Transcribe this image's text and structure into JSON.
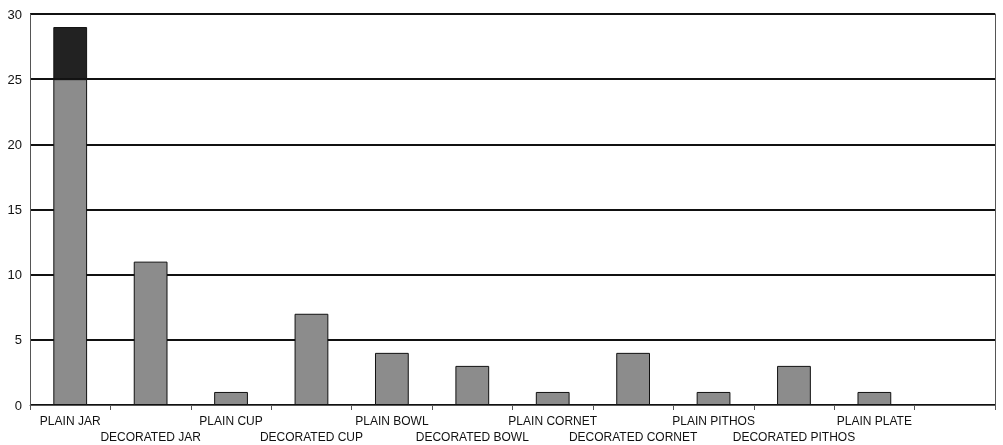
{
  "chart_data": {
    "type": "bar",
    "stacked": true,
    "categories": [
      "PLAIN JAR",
      "DECORATED JAR",
      "PLAIN CUP",
      "DECORATED CUP",
      "PLAIN BOWL",
      "DECORATED BOWL",
      "PLAIN CORNET",
      "DECORATED CORNET",
      "PLAIN PITHOS",
      "DECORATED PITHOS",
      "PLAIN PLATE",
      null
    ],
    "series": [
      {
        "color": "#8c8c8c",
        "values": [
          25,
          11,
          1,
          7,
          4,
          3,
          1,
          4,
          1,
          3,
          1,
          null
        ]
      },
      {
        "color": "#222222",
        "values": [
          4,
          null,
          null,
          null,
          null,
          null,
          null,
          null,
          null,
          null,
          null,
          null
        ]
      }
    ],
    "ylim": [
      0,
      30
    ],
    "yticks": [
      0,
      5,
      10,
      15,
      20,
      25,
      30
    ],
    "grid": "y"
  }
}
